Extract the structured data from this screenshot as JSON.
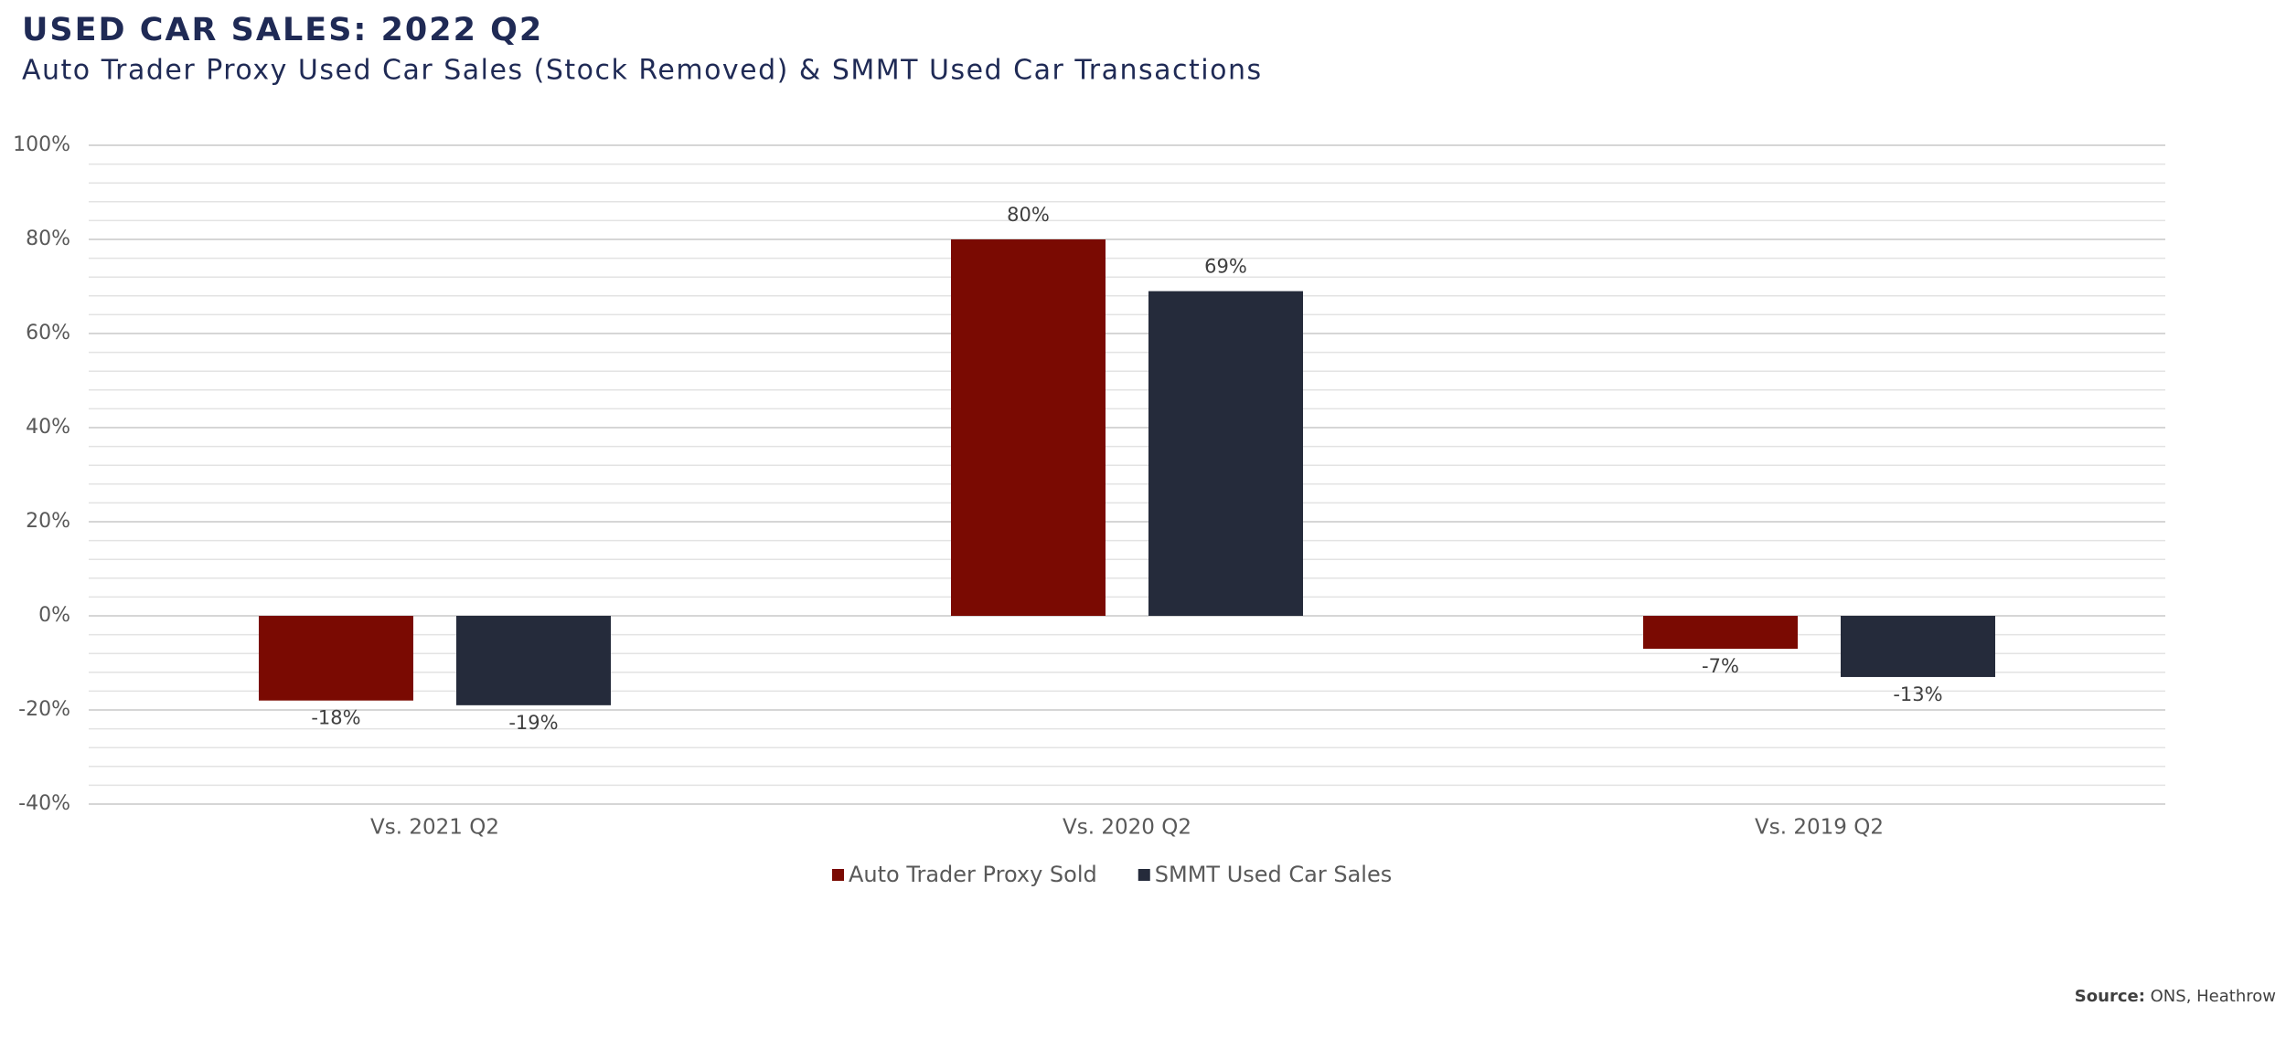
{
  "chart_data": {
    "type": "bar",
    "title": "USED CAR SALES: 2022 Q2",
    "subtitle": "Auto Trader Proxy Used Car Sales (Stock Removed) & SMMT Used Car Transactions",
    "categories": [
      "Vs. 2021 Q2",
      "Vs. 2020 Q2",
      "Vs. 2019 Q2"
    ],
    "series": [
      {
        "name": "Auto Trader Proxy Sold",
        "color": "#7a0a02",
        "values": [
          -18,
          80,
          -7
        ],
        "value_labels": [
          "-18%",
          "80%",
          "-7%"
        ]
      },
      {
        "name": "SMMT Used Car Sales",
        "color": "#252b3b",
        "values": [
          -19,
          69,
          -13
        ],
        "value_labels": [
          "-19%",
          "69%",
          "-13%"
        ]
      }
    ],
    "ylim": [
      -40,
      100
    ],
    "yticks": [
      {
        "value": -40,
        "label": "-40%"
      },
      {
        "value": -20,
        "label": "-20%"
      },
      {
        "value": 0,
        "label": "0%"
      },
      {
        "value": 20,
        "label": "20%"
      },
      {
        "value": 40,
        "label": "40%"
      },
      {
        "value": 60,
        "label": "60%"
      },
      {
        "value": 80,
        "label": "80%"
      },
      {
        "value": 100,
        "label": "100%"
      }
    ],
    "grid": true,
    "legend": "bottom",
    "source_label": "Source:",
    "source_text": "ONS, Heathrow"
  }
}
